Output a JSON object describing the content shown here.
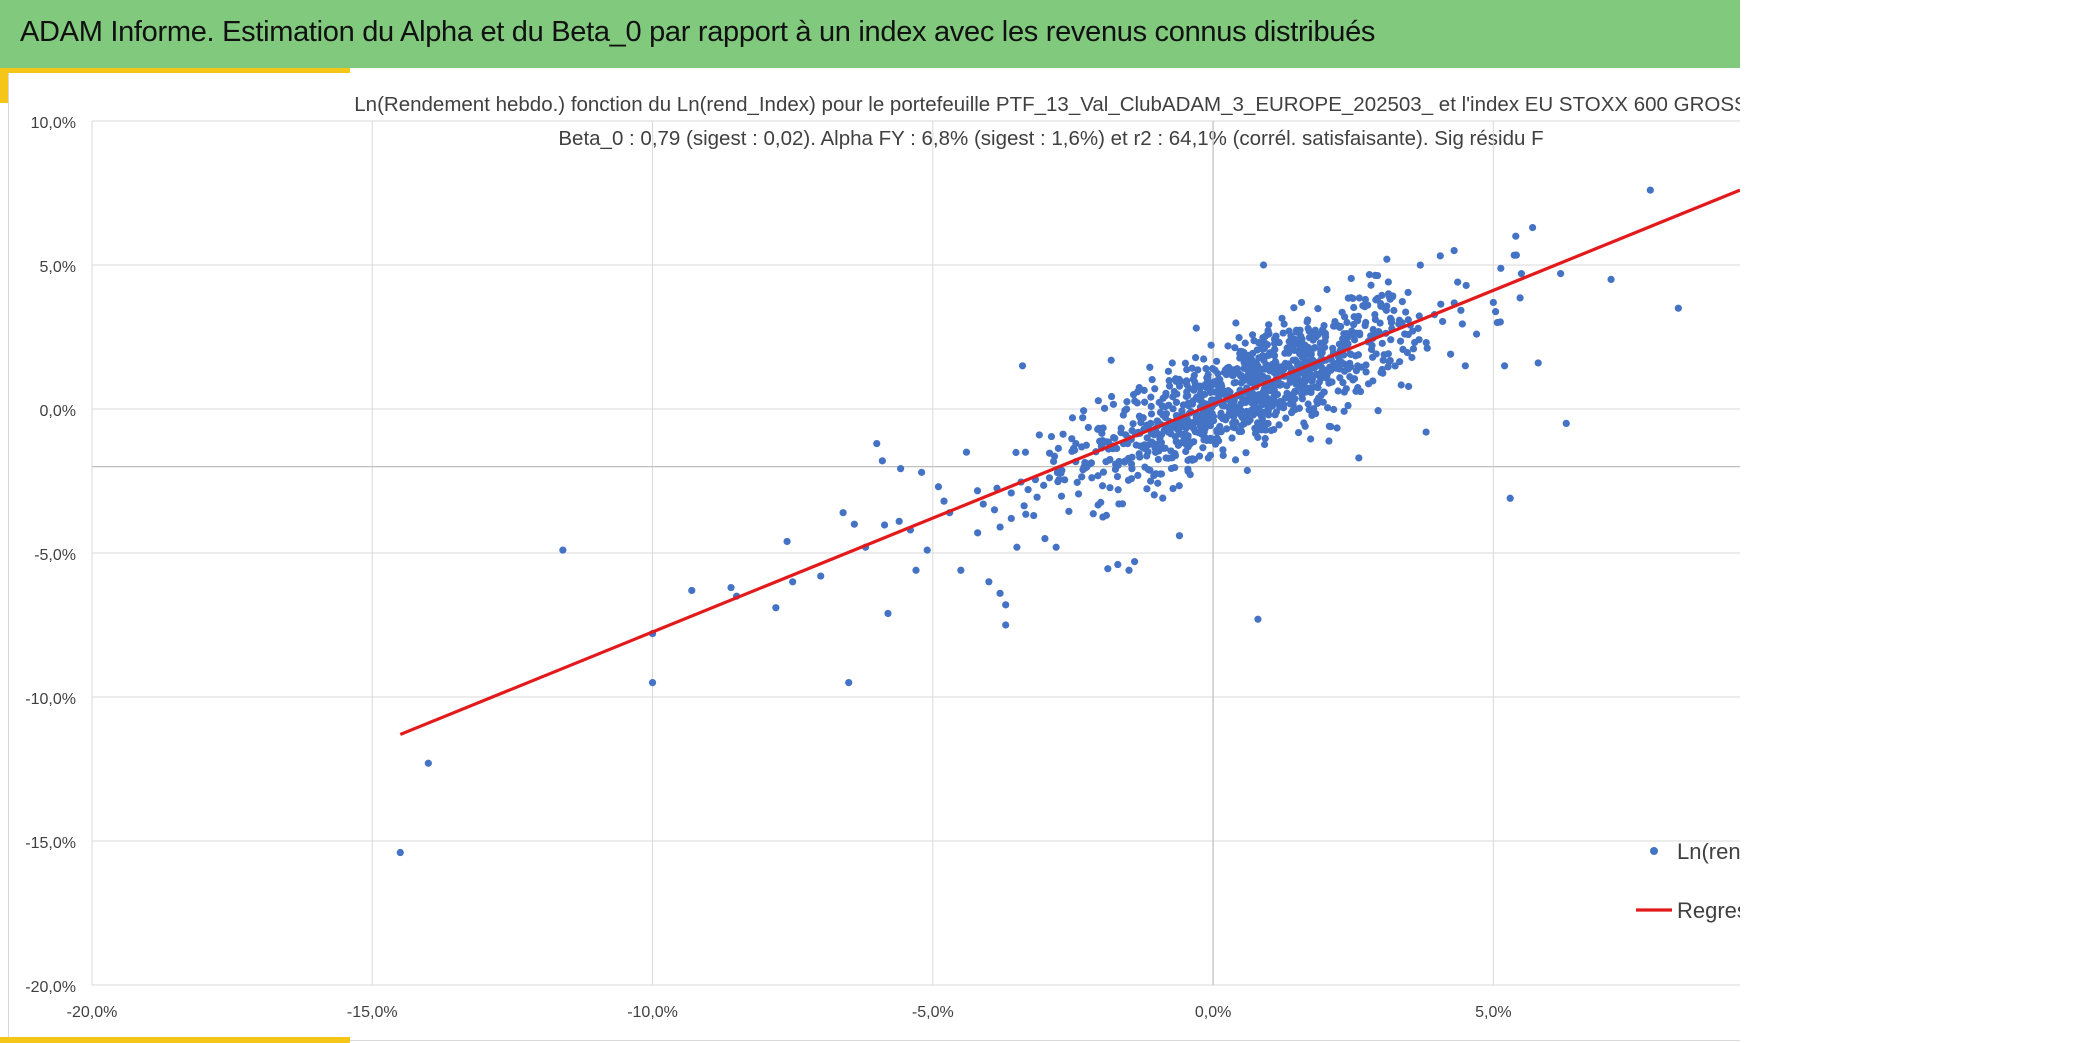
{
  "header": {
    "title": "ADAM Informe. Estimation du Alpha et du Beta_0 par rapport à un index avec les revenus connus distribués"
  },
  "colors": {
    "header_bg": "#80c97d",
    "accent": "#f5c518",
    "points": "#4472c4",
    "regression": "#e31a1c",
    "grid": "#d9d9d9"
  },
  "chart_data": {
    "type": "scatter",
    "title": "Ln(Rendement hebdo.) fonction du Ln(rend_Index) pour le portefeuille PTF_13_Val_ClubADAM_3_EUROPE_202503_ et l'index EU STOXX 600 GROSS",
    "subtitle": "Beta_0 : 0,79 (sigest : 0,02). Alpha FY : 6,8% (sigest : 1,6%) et r2 : 64,1% (corrél. satisfaisante). Sig résidu F",
    "xlabel": "",
    "ylabel": "",
    "xlim": [
      -20,
      9.4
    ],
    "ylim": [
      -20,
      10
    ],
    "x_ticks": [
      -20,
      -15,
      -10,
      -5,
      0,
      5
    ],
    "x_tick_labels": [
      "-20,0%",
      "-15,0%",
      "-10,0%",
      "-5,0%",
      "0,0%",
      "5,0%"
    ],
    "y_ticks": [
      10,
      5,
      0,
      -5,
      -10,
      -15,
      -20
    ],
    "y_tick_labels": [
      "10,0%",
      "5,0%",
      "0,0%",
      "-5,0%",
      "-10,0%",
      "-15,0%",
      "-20,0%"
    ],
    "x_axis_crossing_y": -2.0,
    "grid": true,
    "legend_position": "bottom-right",
    "legend": [
      {
        "label": "Ln(rend",
        "marker": "point"
      },
      {
        "label": "Regres",
        "marker": "line"
      }
    ],
    "series": [
      {
        "name": "Ln(rend",
        "kind": "scatter",
        "points": [
          [
            -14.5,
            -15.4
          ],
          [
            -14.0,
            -12.3
          ],
          [
            -11.6,
            -4.9
          ],
          [
            -10.0,
            -9.5
          ],
          [
            -10.0,
            -7.8
          ],
          [
            -9.3,
            -6.3
          ],
          [
            -8.6,
            -6.2
          ],
          [
            -8.5,
            -6.5
          ],
          [
            -7.8,
            -6.9
          ],
          [
            -7.5,
            -6.0
          ],
          [
            -7.6,
            -4.6
          ],
          [
            -7.0,
            -5.8
          ],
          [
            -6.6,
            -3.6
          ],
          [
            -6.5,
            -9.5
          ],
          [
            -6.4,
            -4.0
          ],
          [
            -6.2,
            -4.8
          ],
          [
            -6.0,
            -1.2
          ],
          [
            -5.9,
            -1.8
          ],
          [
            -5.8,
            -7.1
          ],
          [
            -5.6,
            -3.9
          ],
          [
            -5.4,
            -4.2
          ],
          [
            -5.3,
            -5.6
          ],
          [
            -5.1,
            -4.9
          ],
          [
            -5.2,
            -2.2
          ],
          [
            -4.9,
            -2.7
          ],
          [
            -4.8,
            -3.2
          ],
          [
            -4.7,
            -3.6
          ],
          [
            -4.5,
            -5.6
          ],
          [
            -4.4,
            -1.5
          ],
          [
            -4.2,
            -4.3
          ],
          [
            -4.1,
            -3.3
          ],
          [
            -4.0,
            -6.0
          ],
          [
            -3.9,
            -3.5
          ],
          [
            -3.8,
            -4.1
          ],
          [
            -3.8,
            -6.4
          ],
          [
            -3.7,
            -6.8
          ],
          [
            -3.7,
            -7.5
          ],
          [
            -3.6,
            -3.8
          ],
          [
            -3.5,
            -4.8
          ],
          [
            -3.4,
            1.5
          ],
          [
            -3.3,
            -2.8
          ],
          [
            -3.2,
            -3.7
          ],
          [
            -3.1,
            -0.9
          ],
          [
            -3.0,
            -4.5
          ],
          [
            -2.8,
            -4.8
          ],
          [
            -1.7,
            -5.4
          ],
          [
            -1.5,
            -5.6
          ],
          [
            -1.4,
            -5.3
          ],
          [
            -0.6,
            -4.4
          ],
          [
            0.8,
            -7.3
          ],
          [
            0.9,
            5.0
          ],
          [
            2.6,
            -1.7
          ],
          [
            3.1,
            5.2
          ],
          [
            3.8,
            -0.8
          ],
          [
            4.3,
            5.5
          ],
          [
            4.5,
            1.5
          ],
          [
            4.7,
            2.6
          ],
          [
            5.0,
            3.7
          ],
          [
            5.2,
            1.5
          ],
          [
            5.3,
            -3.1
          ],
          [
            5.4,
            6.0
          ],
          [
            5.5,
            4.7
          ],
          [
            5.7,
            6.3
          ],
          [
            5.8,
            1.6
          ],
          [
            6.2,
            4.7
          ],
          [
            6.3,
            -0.5
          ],
          [
            7.1,
            4.5
          ],
          [
            7.8,
            7.6
          ],
          [
            8.3,
            3.5
          ]
        ],
        "cloud": {
          "description": "dense cluster of weekly returns between about -6% and 6% on both axes",
          "count": 1100,
          "x_center": 0.6,
          "x_spread": 1.6,
          "slope": 0.79,
          "intercept": 0.13,
          "residual_spread": 1.0
        }
      },
      {
        "name": "Regres",
        "kind": "line",
        "points": [
          [
            -14.5,
            -11.3
          ],
          [
            9.4,
            7.6
          ]
        ]
      }
    ]
  }
}
